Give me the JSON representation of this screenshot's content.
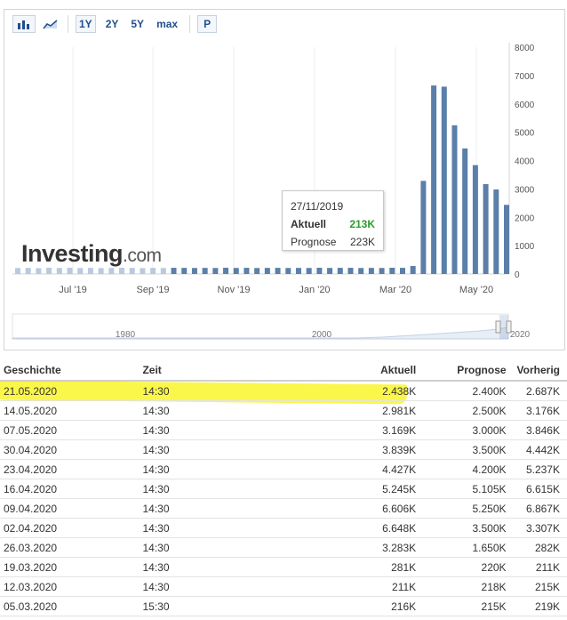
{
  "toolbar": {
    "ranges": [
      "1Y",
      "2Y",
      "5Y",
      "max"
    ],
    "active_range": "1Y",
    "p_label": "P"
  },
  "chart_data": {
    "type": "bar",
    "y_ticks": [
      "0",
      "1000",
      "2000",
      "3000",
      "4000",
      "5000",
      "6000",
      "7000",
      "8000"
    ],
    "ylim": [
      0,
      8000
    ],
    "x_ticks": [
      "Jul '19",
      "Sep '19",
      "Nov '19",
      "Jan '20",
      "Mar '20",
      "May '20"
    ],
    "series": [
      {
        "values": [
          210,
          215,
          205,
          220,
          212,
          218,
          211,
          216,
          209,
          214,
          220,
          213,
          207,
          215,
          210,
          218,
          216,
          211,
          214,
          212,
          219,
          213,
          217,
          210,
          215,
          216,
          211,
          214,
          212,
          219,
          213,
          216,
          218,
          211,
          214,
          211,
          220,
          216,
          281,
          3283,
          6648,
          6606,
          5245,
          4427,
          3839,
          3169,
          2981,
          2438
        ]
      }
    ],
    "color": "#5a7fa9",
    "color_faded": "#b7cadf",
    "navigator_labels": [
      "1980",
      "2000",
      "2020"
    ],
    "tooltip": {
      "date": "27/11/2019",
      "actual_label": "Aktuell",
      "actual_value": "213K",
      "forecast_label": "Prognose",
      "forecast_value": "223K"
    }
  },
  "logo": {
    "main": "Investing",
    "suffix": ".com"
  },
  "table": {
    "headers": [
      "Geschichte",
      "Zeit",
      "Aktuell",
      "Prognose",
      "Vorherig"
    ],
    "rows": [
      {
        "date": "21.05.2020",
        "time": "14:30",
        "actual": "2.438K",
        "actual_color": "neg",
        "forecast": "2.400K",
        "previous": "2.687K",
        "previous_color": "pos"
      },
      {
        "date": "14.05.2020",
        "time": "14:30",
        "actual": "2.981K",
        "actual_color": "neg",
        "forecast": "2.500K",
        "previous": "3.176K",
        "previous_color": "neg"
      },
      {
        "date": "07.05.2020",
        "time": "14:30",
        "actual": "3.169K",
        "actual_color": "neg",
        "forecast": "3.000K",
        "previous": "3.846K",
        "previous_color": "neg"
      },
      {
        "date": "30.04.2020",
        "time": "14:30",
        "actual": "3.839K",
        "actual_color": "neg",
        "forecast": "3.500K",
        "previous": "4.442K",
        "previous_color": "neg"
      },
      {
        "date": "23.04.2020",
        "time": "14:30",
        "actual": "4.427K",
        "actual_color": "neg",
        "forecast": "4.200K",
        "previous": "5.237K",
        "previous_color": "pos"
      },
      {
        "date": "16.04.2020",
        "time": "14:30",
        "actual": "5.245K",
        "actual_color": "neg",
        "forecast": "5.105K",
        "previous": "6.615K",
        "previous_color": "neg"
      },
      {
        "date": "09.04.2020",
        "time": "14:30",
        "actual": "6.606K",
        "actual_color": "neg",
        "forecast": "5.250K",
        "previous": "6.867K",
        "previous_color": "neg"
      },
      {
        "date": "02.04.2020",
        "time": "14:30",
        "actual": "6.648K",
        "actual_color": "neg",
        "forecast": "3.500K",
        "previous": "3.307K",
        "previous_color": "neg"
      },
      {
        "date": "26.03.2020",
        "time": "14:30",
        "actual": "3.283K",
        "actual_color": "neg",
        "forecast": "1.650K",
        "previous": "282K",
        "previous_color": "neg"
      },
      {
        "date": "19.03.2020",
        "time": "14:30",
        "actual": "281K",
        "actual_color": "neg",
        "forecast": "220K",
        "previous": "211K",
        "previous_color": "neu"
      },
      {
        "date": "12.03.2020",
        "time": "14:30",
        "actual": "211K",
        "actual_color": "pos",
        "forecast": "218K",
        "previous": "215K",
        "previous_color": "pos"
      },
      {
        "date": "05.03.2020",
        "time": "15:30",
        "actual": "216K",
        "actual_color": "neg",
        "forecast": "215K",
        "previous": "219K",
        "previous_color": "neu"
      }
    ]
  }
}
